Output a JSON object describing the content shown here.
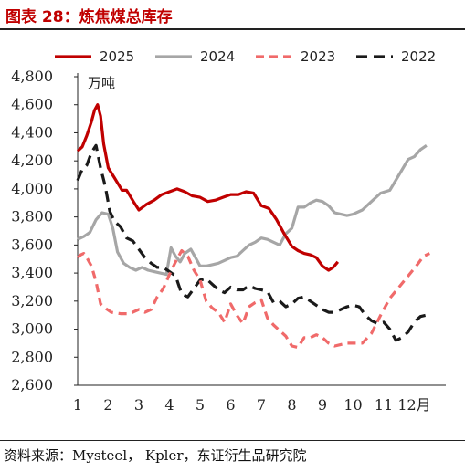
{
  "header": {
    "title": "图表 28：炼焦煤总库存"
  },
  "footer": {
    "source": "资料来源：Mysteel， Kpler，东证衍生品研究院"
  },
  "chart_data": {
    "type": "line",
    "unit": "万吨",
    "ylim": [
      2600,
      4800
    ],
    "yticks": [
      2600,
      2800,
      3000,
      3200,
      3400,
      3600,
      3800,
      4000,
      4200,
      4400,
      4600,
      4800
    ],
    "ytick_labels": [
      "2,600",
      "2,800",
      "3,000",
      "3,200",
      "3,400",
      "3,600",
      "3,800",
      "4,000",
      "4,200",
      "4,400",
      "4,600",
      "4,800"
    ],
    "xlim": [
      1,
      12.5
    ],
    "xticks": [
      1,
      2,
      3,
      4,
      5,
      6,
      7,
      8,
      9,
      10,
      11,
      12
    ],
    "xtick_labels": [
      "1",
      "2",
      "3",
      "4",
      "5",
      "6",
      "7",
      "8",
      "9",
      "10",
      "11",
      "12月"
    ],
    "grid": false,
    "legend_position": "top",
    "series": [
      {
        "name": "2025",
        "color": "#c00000",
        "dash": "solid",
        "x": [
          1,
          1.15,
          1.3,
          1.45,
          1.55,
          1.65,
          1.75,
          1.85,
          2,
          2.2,
          2.45,
          2.6,
          2.85,
          3,
          3.25,
          3.5,
          3.75,
          4,
          4.25,
          4.5,
          4.75,
          5,
          5.25,
          5.5,
          5.75,
          6,
          6.25,
          6.5,
          6.75,
          7,
          7.25,
          7.5,
          7.75,
          8,
          8.2,
          8.4,
          8.6,
          8.8,
          9,
          9.2,
          9.35,
          9.5
        ],
        "y": [
          4270,
          4300,
          4380,
          4480,
          4560,
          4600,
          4520,
          4320,
          4150,
          4080,
          3990,
          3990,
          3900,
          3850,
          3890,
          3920,
          3960,
          3980,
          4000,
          3980,
          3950,
          3940,
          3910,
          3920,
          3940,
          3960,
          3960,
          3980,
          3970,
          3880,
          3860,
          3780,
          3680,
          3590,
          3560,
          3540,
          3530,
          3510,
          3450,
          3420,
          3440,
          3480
        ]
      },
      {
        "name": "2024",
        "color": "#a6a6a6",
        "dash": "solid",
        "x": [
          1,
          1.2,
          1.4,
          1.6,
          1.8,
          2,
          2.15,
          2.3,
          2.5,
          2.7,
          2.9,
          3.1,
          3.3,
          3.5,
          3.7,
          3.9,
          4.05,
          4.2,
          4.35,
          4.5,
          4.7,
          4.85,
          5,
          5.2,
          5.4,
          5.6,
          5.8,
          6,
          6.2,
          6.4,
          6.6,
          6.8,
          7,
          7.2,
          7.4,
          7.6,
          7.8,
          8,
          8.2,
          8.4,
          8.6,
          8.8,
          9,
          9.2,
          9.4,
          9.6,
          9.8,
          10,
          10.3,
          10.6,
          10.9,
          11.2,
          11.5,
          11.8,
          12,
          12.2,
          12.4
        ],
        "y": [
          3640,
          3660,
          3690,
          3780,
          3830,
          3820,
          3720,
          3550,
          3470,
          3440,
          3420,
          3440,
          3420,
          3410,
          3400,
          3390,
          3580,
          3520,
          3480,
          3540,
          3570,
          3510,
          3450,
          3450,
          3460,
          3470,
          3490,
          3510,
          3520,
          3560,
          3600,
          3620,
          3650,
          3640,
          3620,
          3600,
          3680,
          3720,
          3870,
          3870,
          3900,
          3920,
          3910,
          3880,
          3830,
          3820,
          3810,
          3820,
          3850,
          3910,
          3970,
          3990,
          4100,
          4210,
          4230,
          4280,
          4310
        ]
      },
      {
        "name": "2023",
        "color": "#f06a6a",
        "dash": "dashed",
        "x": [
          1,
          1.1,
          1.2,
          1.3,
          1.45,
          1.6,
          1.75,
          1.9,
          2.1,
          2.4,
          2.7,
          3,
          3.2,
          3.4,
          3.6,
          3.8,
          4,
          4.2,
          4.4,
          4.6,
          4.8,
          5,
          5.2,
          5.4,
          5.6,
          5.8,
          6,
          6.2,
          6.4,
          6.6,
          6.8,
          7,
          7.2,
          7.4,
          7.6,
          7.8,
          8,
          8.2,
          8.4,
          8.6,
          8.8,
          9,
          9.2,
          9.4,
          9.6,
          9.8,
          10,
          10.3,
          10.6,
          10.9,
          11.2,
          11.5,
          11.8,
          12.1,
          12.3,
          12.5
        ],
        "y": [
          3510,
          3530,
          3540,
          3510,
          3450,
          3340,
          3180,
          3150,
          3120,
          3110,
          3110,
          3140,
          3120,
          3140,
          3230,
          3290,
          3390,
          3480,
          3560,
          3520,
          3420,
          3350,
          3200,
          3150,
          3120,
          3050,
          3180,
          3100,
          3040,
          3160,
          3190,
          3210,
          3080,
          3030,
          2990,
          2950,
          2880,
          2870,
          2940,
          2940,
          2960,
          2940,
          2900,
          2880,
          2890,
          2900,
          2900,
          2900,
          2970,
          3100,
          3220,
          3300,
          3380,
          3460,
          3520,
          3540
        ]
      },
      {
        "name": "2022",
        "color": "#1a1a1a",
        "dash": "dashed",
        "x": [
          1,
          1.15,
          1.3,
          1.45,
          1.6,
          1.75,
          1.9,
          2.05,
          2.2,
          2.4,
          2.6,
          2.8,
          3,
          3.2,
          3.4,
          3.6,
          3.8,
          4,
          4.2,
          4.4,
          4.6,
          4.8,
          5,
          5.2,
          5.4,
          5.6,
          5.8,
          6,
          6.2,
          6.4,
          6.6,
          6.8,
          7,
          7.2,
          7.4,
          7.6,
          7.8,
          8,
          8.2,
          8.4,
          8.6,
          8.8,
          9,
          9.2,
          9.4,
          9.6,
          9.8,
          10,
          10.2,
          10.4,
          10.6,
          10.8,
          11,
          11.2,
          11.4,
          11.6,
          11.8,
          12,
          12.2,
          12.4
        ],
        "y": [
          4060,
          4140,
          4170,
          4260,
          4310,
          4150,
          4020,
          3840,
          3770,
          3730,
          3650,
          3630,
          3570,
          3510,
          3470,
          3440,
          3440,
          3410,
          3380,
          3250,
          3230,
          3290,
          3350,
          3360,
          3320,
          3280,
          3260,
          3300,
          3280,
          3280,
          3310,
          3290,
          3280,
          3270,
          3190,
          3200,
          3160,
          3180,
          3220,
          3230,
          3200,
          3170,
          3140,
          3120,
          3120,
          3140,
          3160,
          3170,
          3160,
          3100,
          3060,
          3040,
          3050,
          3000,
          2920,
          2940,
          2980,
          3050,
          3090,
          3100
        ]
      }
    ]
  }
}
